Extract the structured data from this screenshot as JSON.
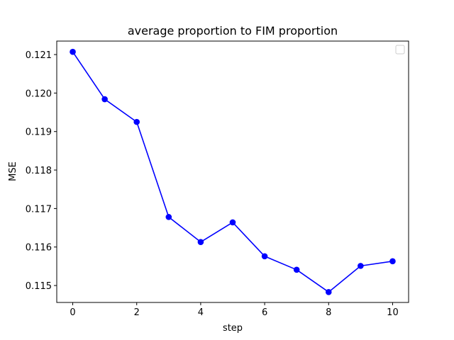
{
  "chart_data": {
    "type": "line",
    "title": "average proportion to FIM proportion",
    "xlabel": "step",
    "ylabel": "MSE",
    "x": [
      0,
      1,
      2,
      3,
      4,
      5,
      6,
      7,
      8,
      9,
      10
    ],
    "series": [
      {
        "values": [
          0.12107,
          0.11984,
          0.11925,
          0.11678,
          0.11613,
          0.11664,
          0.11576,
          0.11541,
          0.11483,
          0.11551,
          0.11563
        ],
        "color": "#0000ff",
        "marker": "circle"
      }
    ],
    "xlim": [
      -0.5,
      10.5
    ],
    "ylim": [
      0.11456,
      0.12135
    ],
    "xticks": [
      0,
      2,
      4,
      6,
      8,
      10
    ],
    "xtick_labels": [
      "0",
      "2",
      "4",
      "6",
      "8",
      "10"
    ],
    "yticks": [
      0.115,
      0.116,
      0.117,
      0.118,
      0.119,
      0.12,
      0.121
    ],
    "ytick_labels": [
      "0.115",
      "0.116",
      "0.117",
      "0.118",
      "0.119",
      "0.120",
      "0.121"
    ],
    "grid": false,
    "legend": "top-right (empty)"
  }
}
